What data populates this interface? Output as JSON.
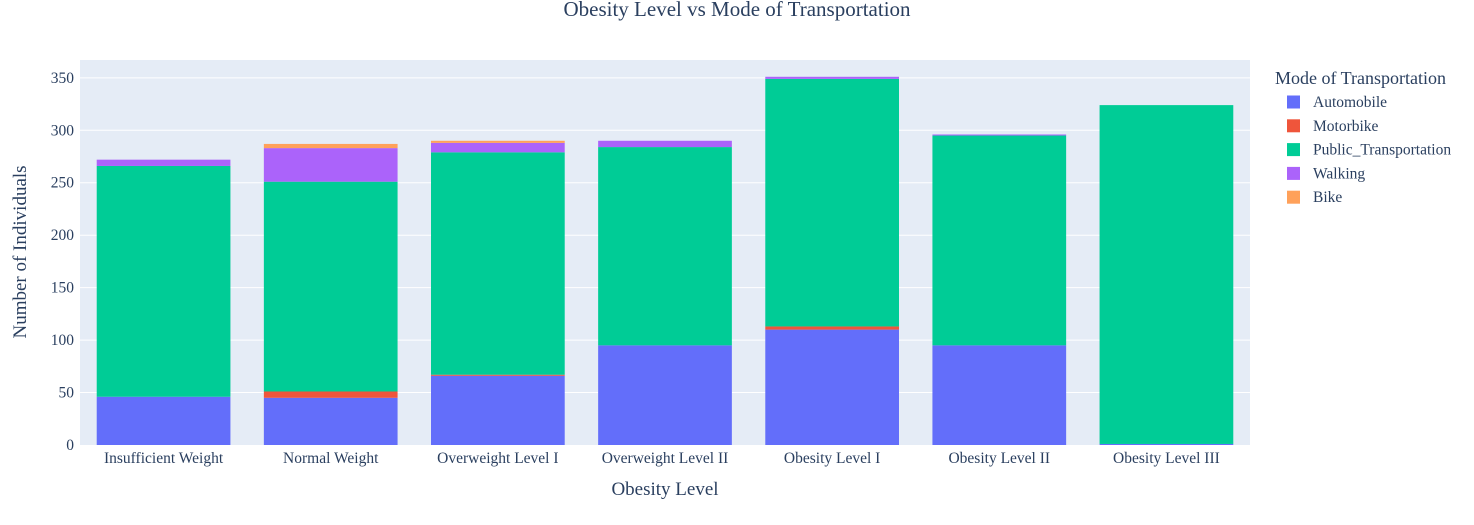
{
  "chart_data": {
    "type": "bar",
    "barmode": "stack",
    "title": "Obesity Level vs Mode of Transportation",
    "xlabel": "Obesity Level",
    "ylabel": "Number of Individuals",
    "ylim": [
      0,
      367
    ],
    "yticks": [
      0,
      50,
      100,
      150,
      200,
      250,
      300,
      350
    ],
    "grid": true,
    "legend_title": "Mode of Transportation",
    "legend_position": "right",
    "categories": [
      "Insufficient Weight",
      "Normal Weight",
      "Overweight Level I",
      "Overweight Level II",
      "Obesity Level I",
      "Obesity Level II",
      "Obesity Level III"
    ],
    "series": [
      {
        "name": "Automobile",
        "color": "#636efa",
        "values": [
          46,
          45,
          66,
          95,
          110,
          95,
          1
        ]
      },
      {
        "name": "Motorbike",
        "color": "#ef553b",
        "values": [
          0,
          6,
          1,
          0,
          3,
          0,
          0
        ]
      },
      {
        "name": "Public_Transportation",
        "color": "#00cc96",
        "values": [
          220,
          200,
          212,
          189,
          236,
          200,
          323
        ]
      },
      {
        "name": "Walking",
        "color": "#ab63fa",
        "values": [
          6,
          32,
          9,
          6,
          2,
          1,
          0
        ]
      },
      {
        "name": "Bike",
        "color": "#ffa15a",
        "values": [
          0,
          4,
          2,
          0,
          0,
          0,
          0
        ]
      }
    ]
  }
}
